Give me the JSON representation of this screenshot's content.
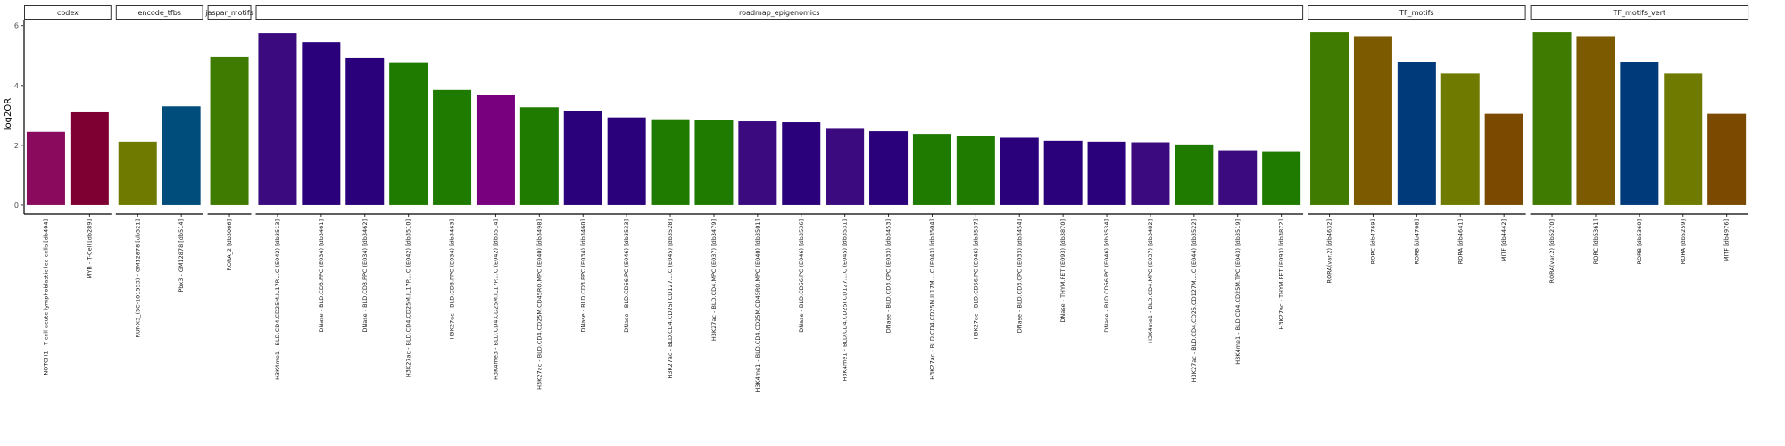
{
  "chart_data": {
    "type": "bar",
    "ylabel": "log2OR",
    "xlabel": "",
    "ylim": [
      -0.3,
      6.2
    ],
    "yticks": [
      0,
      2,
      4,
      6
    ],
    "grid": false,
    "legend": "none",
    "panels": [
      {
        "name": "codex",
        "bars": [
          {
            "label": "NOTCH1 - T-cell acute lymphoblastic lea cells [db404]",
            "value": 2.45,
            "color": "#8a0a5e"
          },
          {
            "label": "MYB - T-Cell [db289]",
            "value": 3.1,
            "color": "#7e0033"
          }
        ]
      },
      {
        "name": "encode_tfbs",
        "bars": [
          {
            "label": "RUNX3_(SC-101553) - GM12878 [db521]",
            "value": 2.12,
            "color": "#6f7b00"
          },
          {
            "label": "Pbx3 - GM12878 [db514]",
            "value": 3.3,
            "color": "#004c7a"
          }
        ]
      },
      {
        "name": "jaspar_motifs",
        "bars": [
          {
            "label": "RORA_2 [db3066]",
            "value": 4.95,
            "color": "#3f7b00"
          }
        ]
      },
      {
        "name": "roadmap_epigenomics",
        "bars": [
          {
            "label": "H3K4me1 - BLD.CD4.CD25M.IL17P....C (E042) [db3513]",
            "value": 5.75,
            "color": "#3b0a7e"
          },
          {
            "label": "DNase - BLD.CD3.PPC (E034) [db3461]",
            "value": 5.45,
            "color": "#2b007b"
          },
          {
            "label": "DNase - BLD.CD3.PPC (E034) [db3462]",
            "value": 4.92,
            "color": "#2b007b"
          },
          {
            "label": "H3K27ac - BLD.CD4.CD25M.IL17P....C (E042) [db3510]",
            "value": 4.75,
            "color": "#1e7b00"
          },
          {
            "label": "H3K27ac - BLD.CD3.PPC (E034) [db3463]",
            "value": 3.85,
            "color": "#1e7b00"
          },
          {
            "label": "H3K4me3 - BLD.CD4.CD25M.IL17P....C (E042) [db3514]",
            "value": 3.68,
            "color": "#78007e"
          },
          {
            "label": "H3K27ac - BLD.CD4.CD25M.CD45RO.MPC (E040) [db3498]",
            "value": 3.27,
            "color": "#1e7b00"
          },
          {
            "label": "DNase - BLD.CD3.PPC (E034) [db3460]",
            "value": 3.13,
            "color": "#2b007b"
          },
          {
            "label": "DNase - BLD.CD56.PC (E046) [db3533]",
            "value": 2.93,
            "color": "#2b007b"
          },
          {
            "label": "H3K27ac - BLD.CD4.CD25I.CD127....C (E045) [db3528]",
            "value": 2.87,
            "color": "#1e7b00"
          },
          {
            "label": "H3K27ac - BLD.CD4.MPC (E037) [db3479]",
            "value": 2.84,
            "color": "#1e7b00"
          },
          {
            "label": "H3K4me1 - BLD.CD4.CD25M.CD45RO.MPC (E040) [db3501]",
            "value": 2.8,
            "color": "#3b0a7e"
          },
          {
            "label": "DNase - BLD.CD56.PC (E046) [db3536]",
            "value": 2.77,
            "color": "#2b007b"
          },
          {
            "label": "H3K4me1 - BLD.CD4.CD25I.CD127....C (E045) [db3531]",
            "value": 2.55,
            "color": "#3b0a7e"
          },
          {
            "label": "DNase - BLD.CD3.CPC (E033) [db3453]",
            "value": 2.47,
            "color": "#2b007b"
          },
          {
            "label": "H3K27ac - BLD.CD4.CD25M.IL17M....C (E043) [db3504]",
            "value": 2.38,
            "color": "#1e7b00"
          },
          {
            "label": "H3K27ac - BLD.CD56.PC (E046) [db3537]",
            "value": 2.32,
            "color": "#1e7b00"
          },
          {
            "label": "DNase - BLD.CD3.CPC (E033) [db3454]",
            "value": 2.25,
            "color": "#2b007b"
          },
          {
            "label": "DNase - THYM.FET (E093) [db3870]",
            "value": 2.15,
            "color": "#2b007b"
          },
          {
            "label": "DNase - BLD.CD56.PC (E046) [db3534]",
            "value": 2.12,
            "color": "#2b007b"
          },
          {
            "label": "H3K4me1 - BLD.CD4.MPC (E037) [db3482]",
            "value": 2.1,
            "color": "#3b0a7e"
          },
          {
            "label": "H3K27ac - BLD.CD4.CD25.CD127M....C (E044) [db3522]",
            "value": 2.03,
            "color": "#1e7b00"
          },
          {
            "label": "H3K4me1 - BLD.CD4.CD25M.TPC (E043) [db3519]",
            "value": 1.83,
            "color": "#3b0a7e"
          },
          {
            "label": "H3K27ac - THYM.FET (E093) [db3872]",
            "value": 1.8,
            "color": "#1e7b00"
          }
        ]
      },
      {
        "name": "TF_motifs",
        "bars": [
          {
            "label": "RORA(var.2) [db4632]",
            "value": 5.78,
            "color": "#3f7b00"
          },
          {
            "label": "RORC [db4769]",
            "value": 5.65,
            "color": "#7b5a00"
          },
          {
            "label": "RORB [db4768]",
            "value": 4.78,
            "color": "#003a7b"
          },
          {
            "label": "RORA [db4641]",
            "value": 4.4,
            "color": "#6f7b00"
          },
          {
            "label": "MITF [db4442]",
            "value": 3.05,
            "color": "#7b4a00"
          }
        ]
      },
      {
        "name": "TF_motifs_vert",
        "bars": [
          {
            "label": "RORA(var.2) [db5270]",
            "value": 5.78,
            "color": "#3f7b00"
          },
          {
            "label": "RORC [db5361]",
            "value": 5.65,
            "color": "#7b5a00"
          },
          {
            "label": "RORB [db5360]",
            "value": 4.78,
            "color": "#003a7b"
          },
          {
            "label": "RORA [db5259]",
            "value": 4.4,
            "color": "#6f7b00"
          },
          {
            "label": "MITF [db4976]",
            "value": 3.05,
            "color": "#7b4a00"
          }
        ]
      }
    ]
  }
}
